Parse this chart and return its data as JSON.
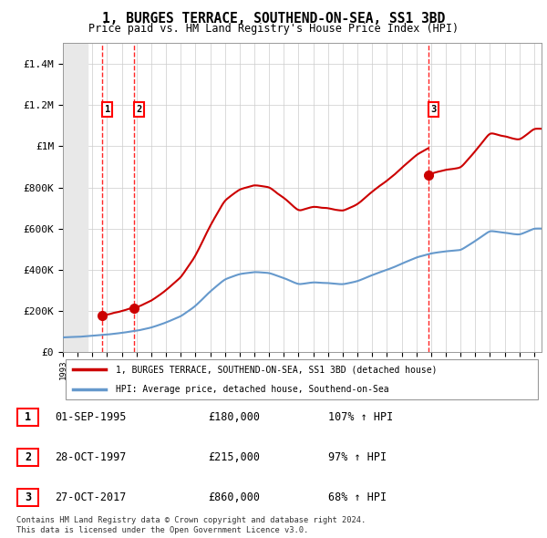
{
  "title": "1, BURGES TERRACE, SOUTHEND-ON-SEA, SS1 3BD",
  "subtitle": "Price paid vs. HM Land Registry's House Price Index (HPI)",
  "sale_dates_str": [
    "1995-09-01",
    "1997-10-28",
    "2017-10-27"
  ],
  "sale_dates_f": [
    1995.67,
    1997.82,
    2017.82
  ],
  "sale_prices": [
    180000,
    215000,
    860000
  ],
  "sale_labels": [
    "1",
    "2",
    "3"
  ],
  "legend_line1": "1, BURGES TERRACE, SOUTHEND-ON-SEA, SS1 3BD (detached house)",
  "legend_line2": "HPI: Average price, detached house, Southend-on-Sea",
  "table_rows": [
    [
      "1",
      "01-SEP-1995",
      "£180,000",
      "107% ↑ HPI"
    ],
    [
      "2",
      "28-OCT-1997",
      "£215,000",
      "97% ↑ HPI"
    ],
    [
      "3",
      "27-OCT-2017",
      "£860,000",
      "68% ↑ HPI"
    ]
  ],
  "footer": "Contains HM Land Registry data © Crown copyright and database right 2024.\nThis data is licensed under the Open Government Licence v3.0.",
  "hpi_color": "#6699cc",
  "property_color": "#cc0000",
  "ylim": [
    0,
    1500000
  ],
  "xlim_start": 1993.0,
  "xlim_end": 2025.5,
  "hatch_end": 1994.75,
  "hpi_data": {
    "years": [
      1993,
      1994,
      1995,
      1996,
      1997,
      1998,
      1999,
      2000,
      2001,
      2002,
      2003,
      2004,
      2005,
      2006,
      2007,
      2008,
      2009,
      2010,
      2011,
      2012,
      2013,
      2014,
      2015,
      2016,
      2017,
      2018,
      2019,
      2020,
      2021,
      2022,
      2023,
      2024,
      2025
    ],
    "prices": [
      72000,
      76000,
      81000,
      87000,
      95000,
      105000,
      120000,
      145000,
      175000,
      225000,
      295000,
      355000,
      380000,
      390000,
      385000,
      360000,
      330000,
      340000,
      335000,
      330000,
      345000,
      375000,
      400000,
      430000,
      460000,
      480000,
      490000,
      495000,
      540000,
      590000,
      580000,
      570000,
      600000
    ]
  }
}
